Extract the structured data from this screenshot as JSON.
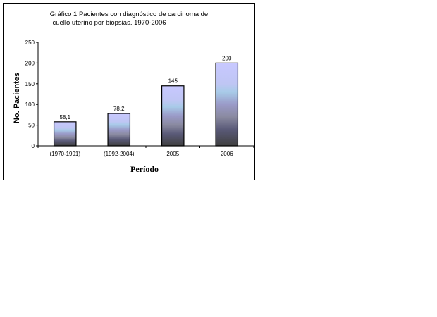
{
  "chart_data": {
    "type": "bar",
    "title_lines": [
      "Gráfico 1 Pacientes con diagnóstico de carcinoma de",
      "cuello uterino por biopsias. 1970-2006"
    ],
    "xlabel": "Período",
    "ylabel": "No. Pacientes",
    "categories": [
      "(1970-1991)",
      "(1992-2004)",
      "2005",
      "2006"
    ],
    "values": [
      58.1,
      78.2,
      145,
      200
    ],
    "data_labels": [
      "58,1",
      "78,2",
      "145",
      "200"
    ],
    "yticks": [
      "0",
      "50",
      "100",
      "150",
      "200",
      "250"
    ],
    "ylim": [
      0,
      250
    ],
    "grid": false,
    "legend": "none",
    "colors": {
      "bar_top": "#c8c8ff",
      "bar_bottom": "#404040",
      "bar_outline": "#000000"
    }
  }
}
